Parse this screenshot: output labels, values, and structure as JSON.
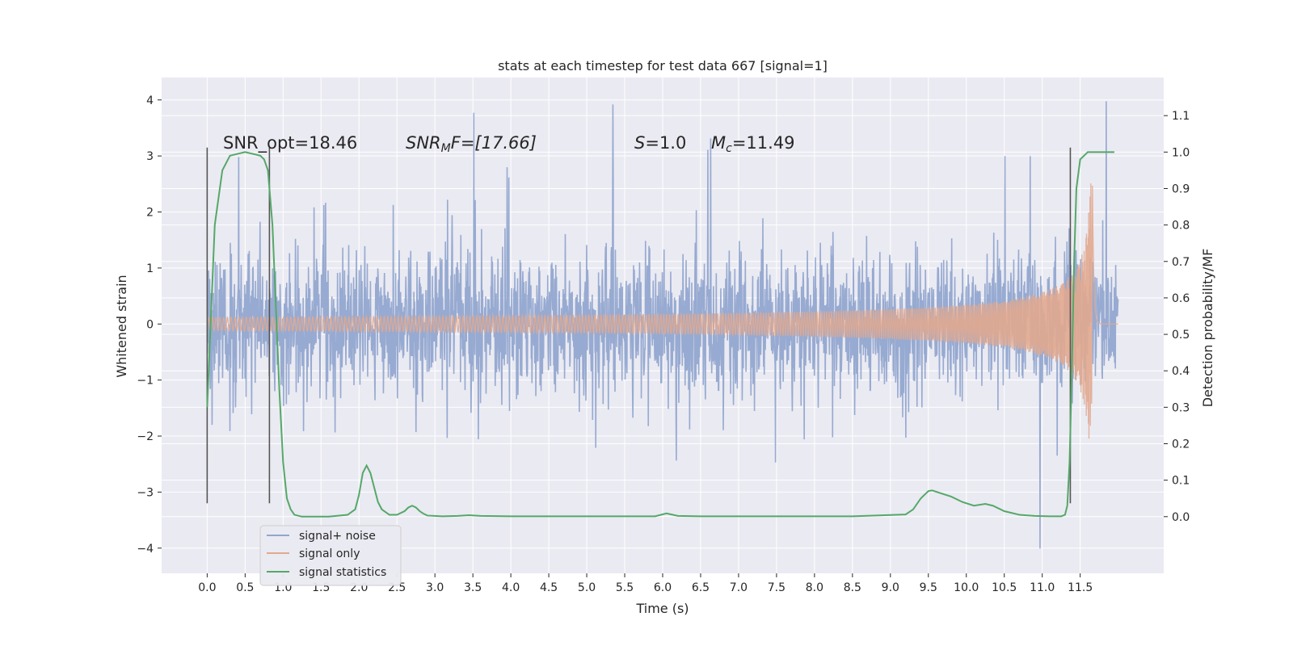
{
  "chart_data": {
    "type": "line",
    "title": "stats at each timestep for test data 667 [signal=1]",
    "xlabel": "Time (s)",
    "ylabel": "Whitened strain",
    "y2label": "Detection probability/MF",
    "xlim": [
      -0.6,
      12.6
    ],
    "ylim": [
      -4.45,
      4.4
    ],
    "y2lim": [
      -0.1555,
      1.2045
    ],
    "grid": true,
    "legend_position": "lower-left",
    "x_ticks": [
      "0.0",
      "0.5",
      "1.0",
      "1.5",
      "2.0",
      "2.5",
      "3.0",
      "3.5",
      "4.0",
      "4.5",
      "5.0",
      "5.5",
      "6.0",
      "6.5",
      "7.0",
      "7.5",
      "8.0",
      "8.5",
      "9.0",
      "9.5",
      "10.0",
      "10.5",
      "11.0",
      "11.5"
    ],
    "y_ticks": [
      4,
      3,
      2,
      1,
      0,
      -1,
      -2,
      -3,
      -4
    ],
    "y2_ticks": [
      1.1,
      1.0,
      0.9,
      0.8,
      0.7,
      0.6,
      0.5,
      0.4,
      0.3,
      0.2,
      0.1,
      0.0
    ],
    "annotations": {
      "snr_opt": "SNR_opt=18.46",
      "snr_mf_main": "SNR",
      "snr_mf_sub": "M",
      "snr_mf_tail": "F=[17.66]",
      "s_main": "S",
      "s_tail": "=1.0",
      "mc_main": "M",
      "mc_sub": "c",
      "mc_tail": "=11.49"
    },
    "vlines": [
      0.0,
      0.82,
      11.37
    ],
    "series": [
      {
        "name": "signal+ noise",
        "color": "#92a6cf",
        "kind": "noise",
        "t_start": 0.0,
        "t_end": 12.0,
        "typical_range": [
          -1.9,
          1.9
        ],
        "max_peak": 4.0,
        "min_peak": -4.1
      },
      {
        "name": "signal only",
        "color": "#e1a98f",
        "kind": "chirp",
        "t_start": 0.0,
        "t_end": 12.0,
        "peak_time": 11.66,
        "peak_amplitude": 2.9
      },
      {
        "name": "signal statistics",
        "color": "#55a868",
        "kind": "probability",
        "x": [
          0.0,
          0.04,
          0.1,
          0.2,
          0.3,
          0.5,
          0.7,
          0.75,
          0.8,
          0.86,
          0.9,
          0.95,
          1.0,
          1.05,
          1.1,
          1.15,
          1.25,
          1.4,
          1.6,
          1.85,
          1.95,
          2.0,
          2.05,
          2.1,
          2.15,
          2.2,
          2.25,
          2.3,
          2.4,
          2.5,
          2.6,
          2.65,
          2.7,
          2.75,
          2.8,
          2.85,
          2.9,
          3.1,
          3.3,
          3.45,
          3.6,
          4.0,
          5.0,
          5.9,
          6.05,
          6.2,
          6.5,
          7.5,
          8.5,
          9.2,
          9.3,
          9.4,
          9.5,
          9.55,
          9.65,
          9.8,
          9.95,
          10.1,
          10.25,
          10.35,
          10.5,
          10.7,
          10.9,
          11.1,
          11.25,
          11.3,
          11.33,
          11.36,
          11.39,
          11.42,
          11.45,
          11.5,
          11.6,
          11.7,
          11.8,
          11.9,
          11.95
        ],
        "values": [
          0.3,
          0.5,
          0.8,
          0.95,
          0.99,
          1.0,
          0.99,
          0.98,
          0.95,
          0.8,
          0.6,
          0.35,
          0.15,
          0.05,
          0.02,
          0.005,
          0.0,
          0.0,
          0.0,
          0.005,
          0.02,
          0.06,
          0.12,
          0.14,
          0.12,
          0.08,
          0.04,
          0.02,
          0.005,
          0.005,
          0.015,
          0.025,
          0.03,
          0.025,
          0.015,
          0.008,
          0.003,
          0.001,
          0.002,
          0.004,
          0.002,
          0.001,
          0.001,
          0.001,
          0.009,
          0.002,
          0.001,
          0.001,
          0.001,
          0.006,
          0.02,
          0.05,
          0.07,
          0.072,
          0.065,
          0.055,
          0.04,
          0.03,
          0.035,
          0.03,
          0.015,
          0.005,
          0.002,
          0.001,
          0.001,
          0.005,
          0.03,
          0.15,
          0.4,
          0.7,
          0.9,
          0.98,
          1.0,
          1.0,
          1.0,
          1.0,
          1.0
        ]
      }
    ]
  }
}
